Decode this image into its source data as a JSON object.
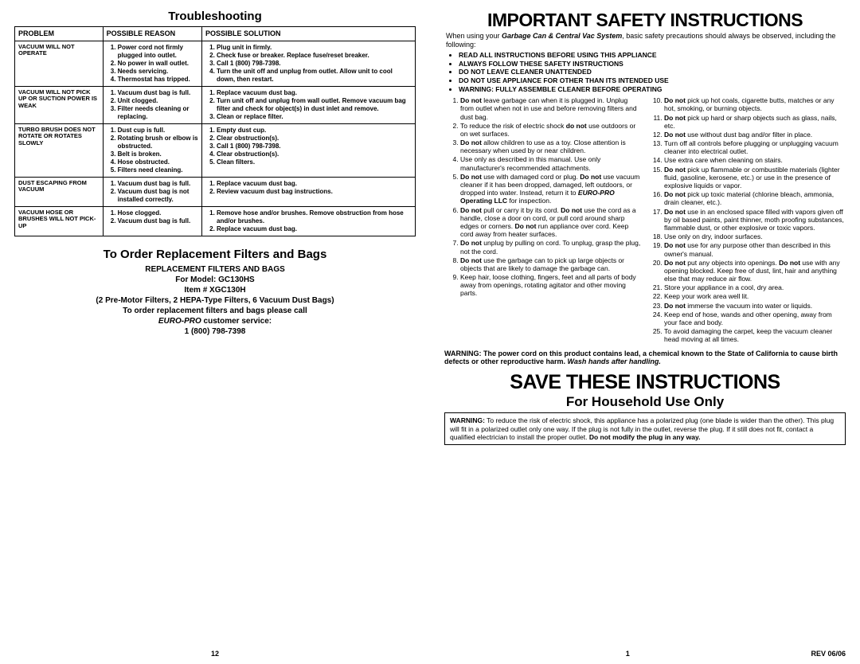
{
  "left": {
    "troubleshooting_title": "Troubleshooting",
    "headers": {
      "c1": "PROBLEM",
      "c2": "POSSIBLE REASON",
      "c3": "POSSIBLE SOLUTION"
    },
    "rows": [
      {
        "problem": "VACUUM WILL NOT OPERATE",
        "reasons": [
          "Power cord not firmly plugged into outlet.",
          "No power in wall outlet.",
          "Needs servicing.",
          "Thermostat has tripped."
        ],
        "solutions": [
          "Plug unit in firmly.",
          "Check fuse or breaker. Replace fuse/reset breaker.",
          "Call 1 (800) 798-7398.",
          "Turn the unit off and unplug from outlet. Allow unit to cool down, then restart."
        ]
      },
      {
        "problem": "VACUUM WILL NOT PICK UP OR SUCTION POWER IS WEAK",
        "reasons": [
          "Vacuum dust bag is full.",
          "Unit clogged.",
          "Filter needs cleaning or replacing."
        ],
        "solutions": [
          "Replace vacuum dust bag.",
          "Turn unit off and unplug from wall outlet. Remove vacuum bag filter and check for object(s) in dust inlet and remove.",
          "Clean or replace filter."
        ]
      },
      {
        "problem": "TURBO BRUSH DOES NOT ROTATE OR ROTATES SLOWLY",
        "reasons": [
          "Dust cup is full.",
          "Rotating brush or elbow is obstructed.",
          "Belt is broken.",
          "Hose obstructed.",
          "Filters need cleaning."
        ],
        "solutions": [
          "Empty dust cup.",
          "Clear obstruction(s).",
          "Call 1 (800) 798-7398.",
          "Clear obstruction(s).",
          "Clean filters."
        ]
      },
      {
        "problem": "DUST ESCAPING FROM VACUUM",
        "reasons": [
          "Vacuum dust bag is full.",
          "Vacuum dust bag is not installed correctly."
        ],
        "solutions": [
          "Replace vacuum dust bag.",
          "Review vacuum dust bag instructions."
        ]
      },
      {
        "problem": "VACUUM HOSE OR BRUSHES WILL NOT PICK-UP",
        "reasons": [
          "Hose clogged.",
          "Vacuum dust bag is full."
        ],
        "solutions": [
          "Remove hose and/or brushes. Remove obstruction from hose and/or brushes.",
          "Replace vacuum dust bag."
        ]
      }
    ],
    "replacement_title": "To Order Replacement Filters and Bags",
    "replacement": {
      "l1": "REPLACEMENT FILTERS AND BAGS",
      "l2": "For Model: GC130HS",
      "l3": "Item # XGC130H",
      "l4": "(2 Pre-Motor Filters, 2 HEPA-Type Filters, 6 Vacuum Dust Bags)",
      "l5": "To order replacement filters and bags please call",
      "l6_italic": "EURO-PRO ",
      "l6_rest": "customer service:",
      "l7": "1 (800) 798-7398"
    },
    "page_num": "12"
  },
  "right": {
    "title": "IMPORTANT SAFETY INSTRUCTIONS",
    "intro_pre": "When using your ",
    "intro_em": "Garbage Can & Central Vac System",
    "intro_post": ", basic safety precautions should always be observed, including the following:",
    "top_bullets": [
      "READ ALL INSTRUCTIONS BEFORE USING THIS APPLIANCE",
      "ALWAYS FOLLOW THESE SAFETY INSTRUCTIONS",
      "DO NOT LEAVE CLEANER UNATTENDED",
      "DO NOT USE APPLIANCE FOR OTHER THAN ITS INTENDED USE",
      "WARNING: FULLY ASSEMBLE CLEANER BEFORE OPERATING"
    ],
    "left_items": [
      "<b>Do not</b> leave garbage can when it is plugged in. Unplug from outlet when not in use and before removing filters and dust bag.",
      "To reduce the risk of electric shock <b>do not</b> use outdoors or on wet surfaces.",
      "<b>Do not</b> allow children to use as a toy. Close attention is necessary when used by or near children.",
      "Use only as described in this manual. Use only manufacturer's recommended attachments.",
      "<b>Do not</b> use with damaged cord or plug. <b>Do not</b> use vacuum cleaner if it has been dropped, damaged, left outdoors, or dropped into water. Instead, return it to <b><i>EURO-PRO</i> Operating LLC</b> for inspection.",
      "<b>Do not</b> pull or carry it by its cord. <b>Do not</b> use the cord as a handle, close a door on cord, or pull cord around sharp edges or corners. <b>Do not</b> run appliance over cord. Keep cord away from heater surfaces.",
      "<b>Do not</b> unplug by pulling on cord. To unplug, grasp the plug, not the cord.",
      "<b>Do not</b> use the garbage can to pick up large objects or objects that are likely to damage the garbage can.",
      "Keep hair, loose clothing, fingers, feet and all parts of body away from openings, rotating agitator and other moving parts."
    ],
    "right_items": [
      "<b>Do not</b> pick up hot coals, cigarette butts, matches or any hot, smoking, or burning objects.",
      "<b>Do not</b> pick up hard or sharp objects such as glass, nails, etc.",
      "<b>Do not</b> use without dust bag and/or filter in place.",
      "Turn off all controls before plugging or unplugging vacuum cleaner into electrical outlet.",
      "Use extra care when cleaning on stairs.",
      "<b>Do not</b> pick up flammable or combustible materials (lighter fluid, gasoline, kerosene, etc.) or use in the presence of explosive liquids or vapor.",
      "<b>Do not</b> pick up toxic material (chlorine bleach, ammonia, drain cleaner, etc.).",
      "<b>Do not</b> use in an enclosed space filled with vapors given off by oil based paints, paint thinner, moth proofing substances, flammable dust, or other explosive or toxic vapors.",
      "Use only on dry, indoor surfaces.",
      "<b>Do not</b> use for any purpose other than described in this owner's manual.",
      "<b>Do not</b> put any objects into openings. <b>Do not</b> use with any opening blocked. Keep free of dust, lint, hair and anything else that may reduce air flow.",
      "Store your appliance in a cool, dry area.",
      "Keep your work area well lit.",
      "<b>Do not</b> immerse the vacuum into water or liquids.",
      "Keep end of hose, wands and other opening, away from your face and body.",
      "To avoid damaging the carpet, keep the vacuum cleaner head moving at all times."
    ],
    "warning_para_b": "WARNING: The power cord on this product contains lead, a chemical known to the State of California to cause birth defects or other reproductive harm.",
    "warning_para_i": "  Wash hands after handling.",
    "save_title": "SAVE THESE INSTRUCTIONS",
    "household": "For Household Use Only",
    "warn_box_b": "WARNING:",
    "warn_box_text": " To reduce the risk of electric shock, this appliance has a polarized plug (one blade is wider than the other). This plug will fit in a polarized outlet only one way. If the plug is not fully in the outlet, reverse the plug. If it still does not fit, contact a qualified electrician to install the proper outlet. ",
    "warn_box_b2": "Do not modify the plug in any way.",
    "page_num": "1",
    "rev": "REV 06/06"
  }
}
